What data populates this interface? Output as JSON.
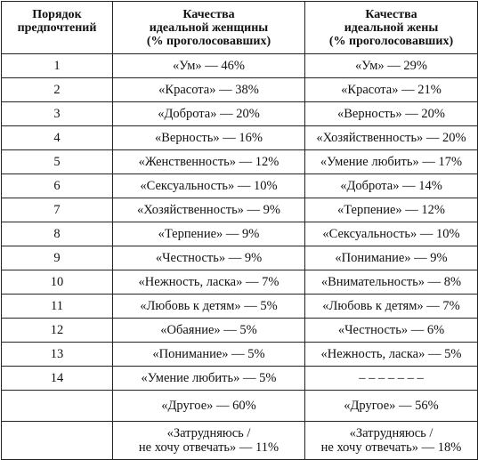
{
  "table": {
    "headers": [
      {
        "line1": "Порядок",
        "line2": "предпочтений",
        "line3": ""
      },
      {
        "line1": "Качества",
        "line2": "идеальной женщины",
        "line3": "(% проголосовавших)"
      },
      {
        "line1": "Качества",
        "line2": "идеальной жены",
        "line3": "(% проголосовавших)"
      }
    ],
    "rows": [
      {
        "rank": "1",
        "woman": "«Ум» — 46%",
        "wife": "«Ум» — 29%"
      },
      {
        "rank": "2",
        "woman": "«Красота» — 38%",
        "wife": "«Красота» — 21%"
      },
      {
        "rank": "3",
        "woman": "«Доброта» — 20%",
        "wife": "«Верность» — 20%"
      },
      {
        "rank": "4",
        "woman": "«Верность» — 16%",
        "wife": "«Хозяйственность» — 20%"
      },
      {
        "rank": "5",
        "woman": "«Женственность» — 12%",
        "wife": "«Умение любить» — 17%"
      },
      {
        "rank": "6",
        "woman": "«Сексуальность» — 10%",
        "wife": "«Доброта» — 14%"
      },
      {
        "rank": "7",
        "woman": "«Хозяйственность» — 9%",
        "wife": "«Терпение» — 12%"
      },
      {
        "rank": "8",
        "woman": "«Терпение» — 9%",
        "wife": "«Сексуальность» — 10%"
      },
      {
        "rank": "9",
        "woman": "«Честность» — 9%",
        "wife": "«Понимание» — 9%"
      },
      {
        "rank": "10",
        "woman": "«Нежность, ласка» — 7%",
        "wife": "«Внимательность» — 8%"
      },
      {
        "rank": "11",
        "woman": "«Любовь к детям» — 5%",
        "wife": "«Любовь к детям» — 7%"
      },
      {
        "rank": "12",
        "woman": "«Обаяние» — 5%",
        "wife": "«Честность» — 6%"
      },
      {
        "rank": "13",
        "woman": "«Понимание» — 5%",
        "wife": "«Нежность, ласка» — 5%"
      },
      {
        "rank": "14",
        "woman": "«Умение любить» — 5%",
        "wife": "– – – – – – –"
      }
    ],
    "other": {
      "rank": "",
      "woman": "«Другое» — 60%",
      "wife": "«Другое» — 56%"
    },
    "undecided": {
      "rank": "",
      "woman_line1": "«Затрудняюсь /",
      "woman_line2": "не хочу отвечать» — 11%",
      "wife_line1": "«Затрудняюсь /",
      "wife_line2": "не хочу отвечать» — 18%"
    }
  }
}
